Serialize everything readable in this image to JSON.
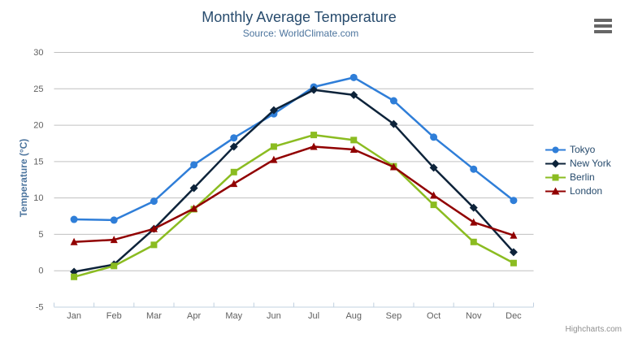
{
  "credit": "Highcharts.com",
  "chart_data": {
    "type": "line",
    "title": "Monthly Average Temperature",
    "subtitle": "Source: WorldClimate.com",
    "xlabel": "",
    "ylabel": "Temperature (°C)",
    "categories": [
      "Jan",
      "Feb",
      "Mar",
      "Apr",
      "May",
      "Jun",
      "Jul",
      "Aug",
      "Sep",
      "Oct",
      "Nov",
      "Dec"
    ],
    "series": [
      {
        "name": "Tokyo",
        "color": "#2f7ed8",
        "marker": "circle",
        "values": [
          7.0,
          6.9,
          9.5,
          14.5,
          18.2,
          21.5,
          25.2,
          26.5,
          23.3,
          18.3,
          13.9,
          9.6
        ]
      },
      {
        "name": "New York",
        "color": "#0d233a",
        "marker": "diamond",
        "values": [
          -0.2,
          0.8,
          5.7,
          11.3,
          17.0,
          22.0,
          24.8,
          24.1,
          20.1,
          14.1,
          8.6,
          2.5
        ]
      },
      {
        "name": "Berlin",
        "color": "#8bbc21",
        "marker": "square",
        "values": [
          -0.9,
          0.6,
          3.5,
          8.4,
          13.5,
          17.0,
          18.6,
          17.9,
          14.3,
          9.0,
          3.9,
          1.0
        ]
      },
      {
        "name": "London",
        "color": "#910000",
        "marker": "triangle",
        "values": [
          3.9,
          4.2,
          5.7,
          8.5,
          11.9,
          15.2,
          17.0,
          16.6,
          14.2,
          10.3,
          6.6,
          4.8
        ]
      }
    ],
    "ylim": [
      -5,
      30
    ],
    "yticks": [
      -5,
      0,
      5,
      10,
      15,
      20,
      25,
      30
    ],
    "grid": true,
    "legend_position": "right-middle",
    "theme": {
      "grid_color": "#c0c0c0",
      "axis_line_color": "#c0d0e0",
      "tick_label_color": "#606060",
      "title_color": "#274b6d",
      "subtitle_color": "#4d759e",
      "legend_text_color": "#274b6d",
      "credit_color": "#909090",
      "menu_icon_color": "#666666"
    }
  }
}
